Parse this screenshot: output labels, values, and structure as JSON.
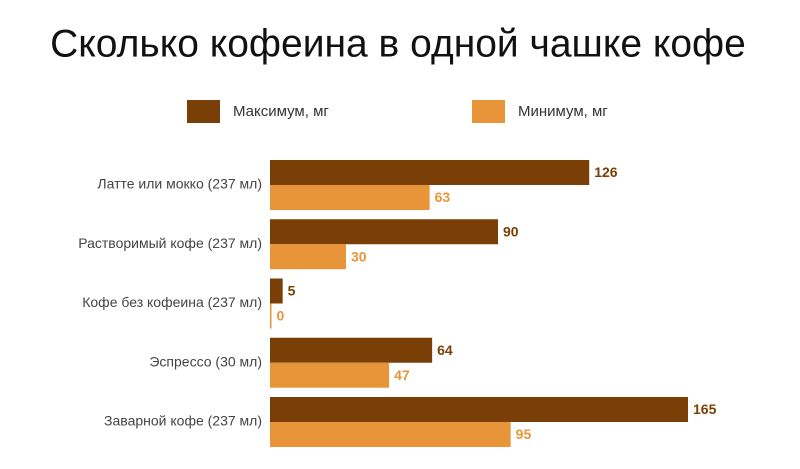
{
  "chart_data": {
    "type": "hbar",
    "title": "Сколько кофеина в одной чашке кофе",
    "categories": [
      "Латте или мокко (237 мл)",
      "Растворимый кофе (237 мл)",
      "Кофе без кофеина (237 мл)",
      "Эспрессо (30 мл)",
      "Заварной кофе (237 мл)"
    ],
    "series": [
      {
        "name": "Максимум, мг",
        "color": "#7a3f06",
        "values": [
          126,
          90,
          5,
          64,
          165
        ]
      },
      {
        "name": "Минимум, мг",
        "color": "#e8953a",
        "values": [
          63,
          30,
          0,
          47,
          95
        ]
      }
    ]
  }
}
